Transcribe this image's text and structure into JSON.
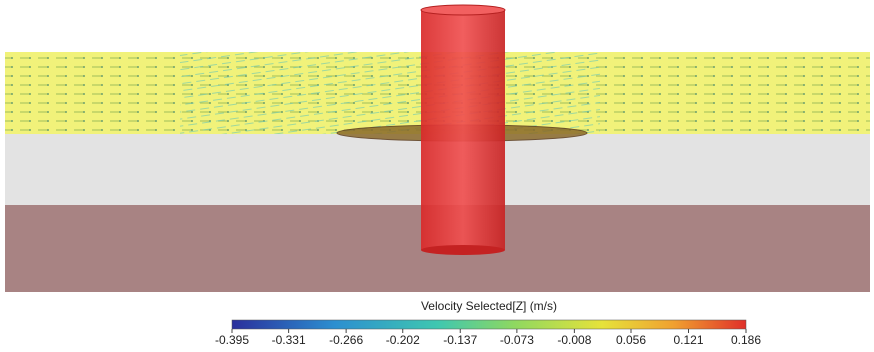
{
  "colorbar": {
    "title": "Velocity Selected[Z] (m/s)",
    "lim": [
      -0.395,
      0.186
    ],
    "ticks": [
      -0.395,
      -0.331,
      -0.266,
      -0.202,
      -0.137,
      -0.073,
      -0.008,
      0.056,
      0.121,
      0.186
    ]
  }
}
